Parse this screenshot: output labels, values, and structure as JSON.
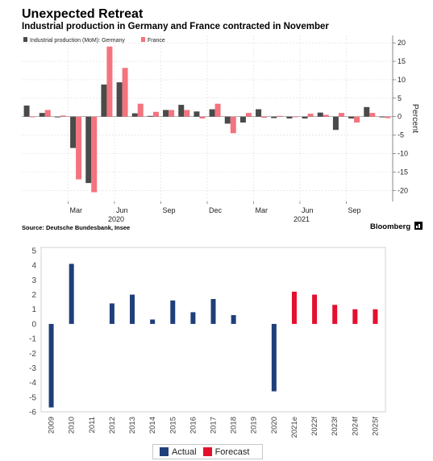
{
  "header": {
    "title": "Unexpected Retreat",
    "subtitle": "Industrial production in Germany and France contracted in November"
  },
  "footer": {
    "source": "Source: Deutsche Bundesbank, Insee",
    "brand": "Bloomberg"
  },
  "colors": {
    "germany": "#4a4a4a",
    "france": "#f3737e",
    "actual": "#1f3f7a",
    "forecast": "#e4102e",
    "grid": "#dcdcdc"
  },
  "chart_data": [
    {
      "type": "bar",
      "title": "Unexpected Retreat",
      "subtitle": "Industrial production in Germany and France contracted in November",
      "ylabel": "Percent",
      "ylim": [
        -23,
        22
      ],
      "yticks": [
        20,
        15,
        10,
        5,
        0,
        -5,
        -10,
        -15,
        -20
      ],
      "y_axis_side": "right",
      "grid": true,
      "legend_position": "top-left",
      "categories": [
        "Dec 2019",
        "Jan 2020",
        "Feb 2020",
        "Mar 2020",
        "Apr 2020",
        "May 2020",
        "Jun 2020",
        "Jul 2020",
        "Aug 2020",
        "Sep 2020",
        "Oct 2020",
        "Nov 2020",
        "Dec 2020",
        "Jan 2021",
        "Feb 2021",
        "Mar 2021",
        "Apr 2021",
        "May 2021",
        "Jun 2021",
        "Jul 2021",
        "Aug 2021",
        "Sep 2021",
        "Oct 2021",
        "Nov 2021"
      ],
      "month_ticks": [
        {
          "index": 3,
          "label": "Mar"
        },
        {
          "index": 6,
          "label": "Jun"
        },
        {
          "index": 9,
          "label": "Sep"
        },
        {
          "index": 12,
          "label": "Dec"
        },
        {
          "index": 15,
          "label": "Mar"
        },
        {
          "index": 18,
          "label": "Jun"
        },
        {
          "index": 21,
          "label": "Sep"
        }
      ],
      "year_ticks": [
        {
          "index": 6,
          "label": "2020"
        },
        {
          "index": 18,
          "label": "2021"
        }
      ],
      "series": [
        {
          "name": "Industrial production (MoM): Germany",
          "color": "#4a4a4a",
          "values": [
            3.0,
            1.0,
            -0.2,
            -8.5,
            -18.0,
            8.7,
            9.3,
            0.9,
            0.2,
            1.8,
            3.2,
            1.4,
            2.0,
            -1.9,
            -1.6,
            2.0,
            -0.4,
            -0.5,
            -0.5,
            1.1,
            -3.6,
            -0.5,
            2.6,
            -0.2
          ]
        },
        {
          "name": "France",
          "color": "#f3737e",
          "values": [
            0.0,
            1.8,
            0.3,
            -17.0,
            -20.5,
            19.0,
            13.2,
            3.5,
            1.3,
            1.8,
            1.8,
            -0.5,
            3.5,
            -4.5,
            1.0,
            -0.3,
            0.2,
            0.0,
            0.8,
            0.5,
            1.0,
            -1.6,
            1.0,
            -0.4
          ]
        }
      ]
    },
    {
      "type": "bar",
      "ylim": [
        -6,
        5
      ],
      "yticks": [
        5,
        4,
        3,
        2,
        1,
        0,
        -1,
        -2,
        -3,
        -4,
        -5,
        -6
      ],
      "grid": false,
      "legend_position": "bottom",
      "categories": [
        "2009",
        "2010",
        "2011",
        "2012",
        "2013",
        "2014",
        "2015",
        "2016",
        "2017",
        "2018",
        "2019",
        "2020",
        "2021e",
        "2022f",
        "2023f",
        "2024f",
        "2025f"
      ],
      "series": [
        {
          "name": "Actual",
          "color": "#1f3f7a",
          "values": [
            -5.7,
            4.1,
            null,
            1.4,
            2.0,
            0.3,
            1.6,
            0.8,
            1.7,
            0.6,
            null,
            -4.6,
            null,
            null,
            null,
            null,
            null
          ]
        },
        {
          "name": "Forecast",
          "color": "#e4102e",
          "values": [
            null,
            null,
            null,
            null,
            null,
            null,
            null,
            null,
            null,
            null,
            null,
            null,
            2.2,
            2.0,
            1.3,
            1.0,
            1.0
          ]
        }
      ]
    }
  ]
}
